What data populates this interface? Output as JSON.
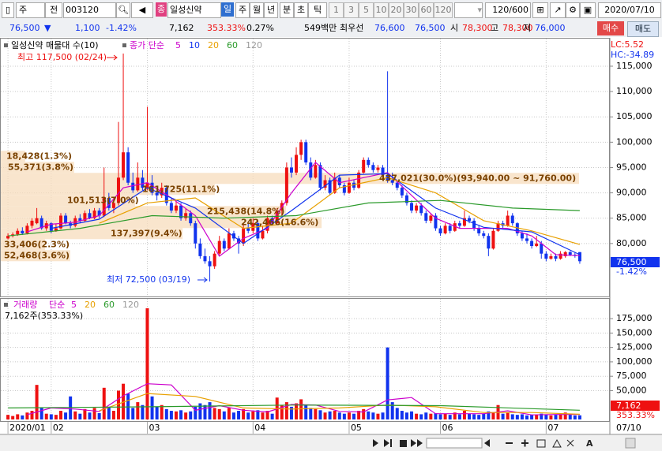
{
  "toolbar": {
    "market": "주",
    "scope": "전",
    "code": "003120",
    "badge": "종",
    "name": "일성신약",
    "periods": [
      "일",
      "주",
      "월",
      "년",
      "분",
      "초",
      "틱"
    ],
    "numbers": [
      "1",
      "3",
      "5",
      "10",
      "20",
      "30",
      "60",
      "120"
    ],
    "count": "120/600",
    "date": "2020/07/10"
  },
  "quote": {
    "price": "76,500",
    "arrow": "▼",
    "change": "1,100",
    "change_pct": "-1.42%",
    "volume": "7,162",
    "volume_ratio": "353.33%",
    "turnover": "0.27%",
    "amount": "549백만",
    "best_label": "최우선",
    "ask": "76,600",
    "bid": "76,500",
    "open_label": "시",
    "open": "78,300",
    "high_label": "고",
    "high": "78,300",
    "low_label": "저",
    "low": "76,000",
    "buy": "매수",
    "sell": "매도"
  },
  "controls": {
    "font": "A"
  },
  "chart_data": [
    {
      "type": "candlestick",
      "title": "일성신약 매물대 수(10)",
      "ma_label": "종가 단순",
      "lc": "LC:5.52",
      "hc": "HC:-34.89",
      "up_color": "#ee1111",
      "down_color": "#1133ee",
      "profile_color": "#f7dcbc",
      "grid": true,
      "xlim": [
        -1,
        120
      ],
      "ylim": [
        69700,
        120600
      ],
      "yticks": [
        {
          "value": 80000,
          "label": "80,000"
        },
        {
          "value": 85000,
          "label": "85,000"
        },
        {
          "value": 90000,
          "label": "90,000"
        },
        {
          "value": 95000,
          "label": "95,000"
        },
        {
          "value": 100000,
          "label": "100,000"
        },
        {
          "value": 105000,
          "label": "105,000"
        },
        {
          "value": 110000,
          "label": "110,000"
        },
        {
          "value": 115000,
          "label": "115,000"
        }
      ],
      "open": [
        81000,
        81500,
        81800,
        82500,
        82000,
        83500,
        84000,
        85000,
        83000,
        84000,
        82500,
        83000,
        85500,
        84000,
        83500,
        85000,
        84500,
        86000,
        85000,
        86500,
        85500,
        89000,
        87000,
        88000,
        93000,
        98000,
        92000,
        90500,
        93000,
        91000,
        92000,
        90000,
        89500,
        91000,
        88000,
        86500,
        87500,
        85000,
        86000,
        84000,
        80000,
        77500,
        76500,
        75500,
        78000,
        80500,
        79000,
        82000,
        81000,
        80000,
        83000,
        82500,
        84000,
        81000,
        82500,
        85000,
        84000,
        86500,
        88000,
        95000,
        94000,
        97500,
        100000,
        96000,
        93000,
        95500,
        91000,
        92500,
        90000,
        93000,
        91500,
        90000,
        92000,
        91000,
        94000,
        96500,
        95500,
        94500,
        95000,
        93500,
        92500,
        92000,
        91000,
        89500,
        88000,
        86500,
        87500,
        86000,
        84500,
        85500,
        83000,
        82000,
        83500,
        82500,
        84000,
        83500,
        85000,
        84500,
        83000,
        82000,
        81500,
        79000,
        82500,
        84000,
        83500,
        85500,
        84000,
        82000,
        81000,
        80500,
        79500,
        80000,
        78000,
        77000,
        77500,
        77000,
        77500,
        78300,
        77800,
        78300
      ],
      "high": [
        82000,
        82200,
        83000,
        83200,
        84000,
        85000,
        87000,
        85500,
        84500,
        84200,
        83800,
        86000,
        86000,
        84500,
        85500,
        85800,
        86500,
        86800,
        87000,
        87000,
        95000,
        90000,
        89000,
        104000,
        117500,
        99000,
        94000,
        96000,
        94500,
        107000,
        93500,
        91000,
        92000,
        91500,
        89000,
        88500,
        88000,
        87000,
        86500,
        84500,
        81000,
        79000,
        77500,
        78500,
        81500,
        81000,
        83000,
        82500,
        81500,
        84000,
        84000,
        85000,
        84500,
        83500,
        85500,
        85500,
        87000,
        88500,
        96000,
        97000,
        99000,
        100500,
        100500,
        97000,
        96500,
        96000,
        93500,
        93000,
        94000,
        93500,
        92000,
        93000,
        92500,
        94500,
        97000,
        97000,
        96000,
        95500,
        95500,
        114000,
        94000,
        92500,
        91500,
        90000,
        88500,
        88000,
        88000,
        86500,
        86000,
        86000,
        83500,
        84000,
        84000,
        84500,
        84500,
        86500,
        85500,
        85000,
        83500,
        82500,
        82000,
        83000,
        84500,
        84500,
        86500,
        86000,
        84200,
        82500,
        82000,
        81000,
        81500,
        80500,
        78500,
        78000,
        78000,
        78500,
        78500,
        78500,
        78300,
        78300
      ],
      "low": [
        80800,
        81200,
        81500,
        81700,
        81800,
        83000,
        83800,
        82700,
        82500,
        82000,
        82300,
        82800,
        83800,
        83000,
        83200,
        84000,
        84200,
        84800,
        84800,
        85000,
        85200,
        86500,
        86000,
        87500,
        92500,
        91500,
        90000,
        90200,
        90500,
        90500,
        89500,
        88500,
        89000,
        87500,
        86000,
        86000,
        84500,
        84500,
        83500,
        79000,
        77000,
        76000,
        72500,
        75000,
        77500,
        78500,
        78800,
        80500,
        78000,
        79500,
        82000,
        82000,
        80500,
        80800,
        82000,
        83500,
        83800,
        85500,
        87500,
        93000,
        93500,
        96500,
        95500,
        92500,
        92800,
        90500,
        90500,
        89500,
        89800,
        91000,
        89500,
        89800,
        90500,
        90800,
        93800,
        95000,
        94000,
        94000,
        93000,
        92000,
        91500,
        90500,
        89000,
        87500,
        86000,
        86000,
        85500,
        84000,
        84000,
        82500,
        81500,
        81800,
        82000,
        82300,
        83000,
        83300,
        84000,
        82500,
        81500,
        81000,
        77500,
        78800,
        82300,
        83000,
        83300,
        83500,
        81500,
        80500,
        80000,
        79000,
        79300,
        77000,
        76500,
        76800,
        76500,
        76800,
        77200,
        77500,
        77200,
        76000
      ],
      "close": [
        81500,
        81800,
        82500,
        82000,
        83500,
        84500,
        85000,
        83000,
        84000,
        82500,
        83000,
        85500,
        84000,
        83500,
        85000,
        84500,
        86000,
        85000,
        86500,
        85500,
        89000,
        87000,
        88000,
        93000,
        98000,
        92000,
        90500,
        93000,
        91000,
        92000,
        90000,
        89500,
        91000,
        88000,
        86500,
        87500,
        85000,
        86000,
        84000,
        80000,
        77500,
        76500,
        75500,
        78000,
        80500,
        79000,
        82000,
        81000,
        80000,
        83000,
        82500,
        84000,
        81000,
        82500,
        85000,
        84000,
        86500,
        88000,
        95000,
        94000,
        97500,
        100000,
        96000,
        93000,
        95500,
        91000,
        92500,
        90000,
        93000,
        91500,
        90000,
        92000,
        91000,
        94000,
        96500,
        95500,
        94500,
        95000,
        93500,
        92500,
        92000,
        91000,
        89500,
        88000,
        86500,
        87500,
        86000,
        84500,
        85500,
        83000,
        82000,
        83500,
        82500,
        84000,
        83500,
        85000,
        84500,
        83000,
        82000,
        81500,
        79000,
        82500,
        84000,
        83500,
        85500,
        84000,
        82000,
        81000,
        80500,
        79500,
        80000,
        78000,
        77000,
        77500,
        77000,
        78000,
        78300,
        77800,
        77600,
        76500
      ],
      "series": [
        {
          "name": "5",
          "color": "#cc00cc",
          "x": [
            4,
            9,
            14,
            19,
            24,
            29,
            34,
            39,
            44,
            49,
            54,
            59,
            64,
            69,
            74,
            79,
            84,
            89,
            94,
            99,
            104,
            109,
            114,
            119
          ],
          "values": [
            82300,
            83800,
            84200,
            85500,
            91000,
            92000,
            89000,
            85500,
            77500,
            81000,
            83000,
            90000,
            96000,
            92000,
            93000,
            94000,
            89500,
            85000,
            83000,
            83000,
            83000,
            81500,
            77800,
            77600
          ]
        },
        {
          "name": "10",
          "color": "#1133ee",
          "x": [
            9,
            19,
            29,
            39,
            49,
            59,
            69,
            79,
            89,
            99,
            109,
            119
          ],
          "values": [
            83000,
            84800,
            91000,
            87000,
            80000,
            86500,
            93500,
            93800,
            87000,
            83200,
            82300,
            77800
          ]
        },
        {
          "name": "20",
          "color": "#e8a000",
          "x": [
            19,
            29,
            39,
            49,
            59,
            69,
            79,
            89,
            99,
            109,
            119
          ],
          "values": [
            84000,
            88000,
            89000,
            83000,
            84000,
            91000,
            93000,
            90000,
            84500,
            82500,
            79800
          ]
        },
        {
          "name": "60",
          "color": "#2a9a2a",
          "x": [
            0,
            15,
            30,
            45,
            60,
            75,
            90,
            105,
            119
          ],
          "values": [
            81500,
            83000,
            85500,
            85000,
            85500,
            88000,
            88500,
            87000,
            86500
          ]
        },
        {
          "name": "120",
          "color": "#999999",
          "x": [],
          "values": []
        }
      ],
      "volume_profile": [
        {
          "label": "18,428(1.3%)",
          "volume": 18428,
          "low": 96120,
          "high": 98300
        },
        {
          "label": "55,371(3.8%)",
          "volume": 55371,
          "low": 93940,
          "high": 96120
        },
        {
          "label": "437,021(30.0%)(93,940.00 ~ 91,760.00)",
          "volume": 437021,
          "low": 91760,
          "high": 93940
        },
        {
          "label": "161,725(11.1%)",
          "volume": 161725,
          "low": 89580,
          "high": 91760
        },
        {
          "label": "101,513(7.0%)",
          "volume": 101513,
          "low": 87400,
          "high": 89580
        },
        {
          "label": "215,438(14.8%)",
          "volume": 215438,
          "low": 85220,
          "high": 87400
        },
        {
          "label": "242,466(16.6%)",
          "volume": 242466,
          "low": 83040,
          "high": 85220
        },
        {
          "label": "137,397(9.4%)",
          "volume": 137397,
          "low": 80860,
          "high": 83040
        },
        {
          "label": "33,406(2.3%)",
          "volume": 33406,
          "low": 78680,
          "high": 80860
        },
        {
          "label": "52,468(3.6%)",
          "volume": 52468,
          "low": 76500,
          "high": 78680
        }
      ],
      "annotations": [
        "최고 117,500 (02/24)",
        "최저 72,500 (03/19)"
      ]
    },
    {
      "type": "volume",
      "title": "거래량",
      "ma_label": "단순",
      "annotation": "7,162주(353.33%)",
      "grid": true,
      "xlim": [
        -1,
        120
      ],
      "ylim": [
        0,
        208000
      ],
      "xticks": [
        {
          "value": 0,
          "label": "2020/01"
        },
        {
          "value": 9,
          "label": "02"
        },
        {
          "value": 29,
          "label": "03"
        },
        {
          "value": 51,
          "label": "04"
        },
        {
          "value": 71,
          "label": "05"
        },
        {
          "value": 90,
          "label": "06"
        },
        {
          "value": 112,
          "label": "07"
        }
      ],
      "last_date": "07/10",
      "yticks": [
        {
          "value": 50000,
          "label": "50,000"
        },
        {
          "value": 75000,
          "label": "75,000"
        },
        {
          "value": 100000,
          "label": "100,000"
        },
        {
          "value": 125000,
          "label": "125,000"
        },
        {
          "value": 150000,
          "label": "150,000"
        },
        {
          "value": 175000,
          "label": "175,000"
        }
      ],
      "values": [
        8000,
        6000,
        9000,
        7000,
        12000,
        15000,
        60000,
        20000,
        10000,
        9000,
        8000,
        15000,
        12000,
        40000,
        14000,
        10000,
        18000,
        12000,
        20000,
        11000,
        55000,
        22000,
        15000,
        50000,
        62000,
        45000,
        20000,
        30000,
        25000,
        193000,
        40000,
        22000,
        25000,
        18000,
        15000,
        14000,
        16000,
        12000,
        14000,
        22000,
        28000,
        25000,
        30000,
        20000,
        18000,
        14000,
        20000,
        12000,
        15000,
        18000,
        12000,
        14000,
        16000,
        12000,
        15000,
        10000,
        38000,
        25000,
        30000,
        22000,
        28000,
        35000,
        25000,
        20000,
        18000,
        16000,
        12000,
        14000,
        15000,
        12000,
        10000,
        12000,
        10000,
        15000,
        18000,
        14000,
        12000,
        10000,
        12000,
        125000,
        30000,
        20000,
        15000,
        12000,
        14000,
        10000,
        9000,
        12000,
        10000,
        11000,
        9000,
        10000,
        8000,
        12000,
        9000,
        15000,
        10000,
        9000,
        8000,
        10000,
        14000,
        12000,
        25000,
        10000,
        12000,
        9000,
        8000,
        9000,
        7000,
        8000,
        8000,
        10000,
        9000,
        7000,
        8000,
        9000,
        12000,
        8000,
        7000,
        7162
      ],
      "series": [
        {
          "name": "5",
          "color": "#cc00cc",
          "x": [
            4,
            9,
            14,
            19,
            24,
            29,
            34,
            39,
            44,
            49,
            54,
            59,
            64,
            69,
            74,
            79,
            84,
            89,
            94,
            99,
            104,
            109,
            114,
            119
          ],
          "values": [
            8400,
            20000,
            18000,
            14000,
            41000,
            62000,
            60000,
            16000,
            24000,
            16000,
            13000,
            26000,
            25000,
            14000,
            13000,
            34000,
            38000,
            10000,
            10000,
            10000,
            15000,
            8000,
            8600,
            8600
          ]
        },
        {
          "name": "20",
          "color": "#e8a000",
          "x": [
            19,
            29,
            39,
            49,
            59,
            69,
            79,
            89,
            99,
            109,
            119
          ],
          "values": [
            15000,
            45000,
            40000,
            20000,
            18000,
            20000,
            25000,
            22000,
            12000,
            12000,
            9000
          ]
        },
        {
          "name": "60",
          "color": "#2a9a2a",
          "x": [
            0,
            30,
            60,
            90,
            119
          ],
          "values": [
            20000,
            22000,
            25000,
            24000,
            16000
          ]
        },
        {
          "name": "120",
          "color": "#999999",
          "x": [],
          "values": []
        }
      ]
    }
  ]
}
